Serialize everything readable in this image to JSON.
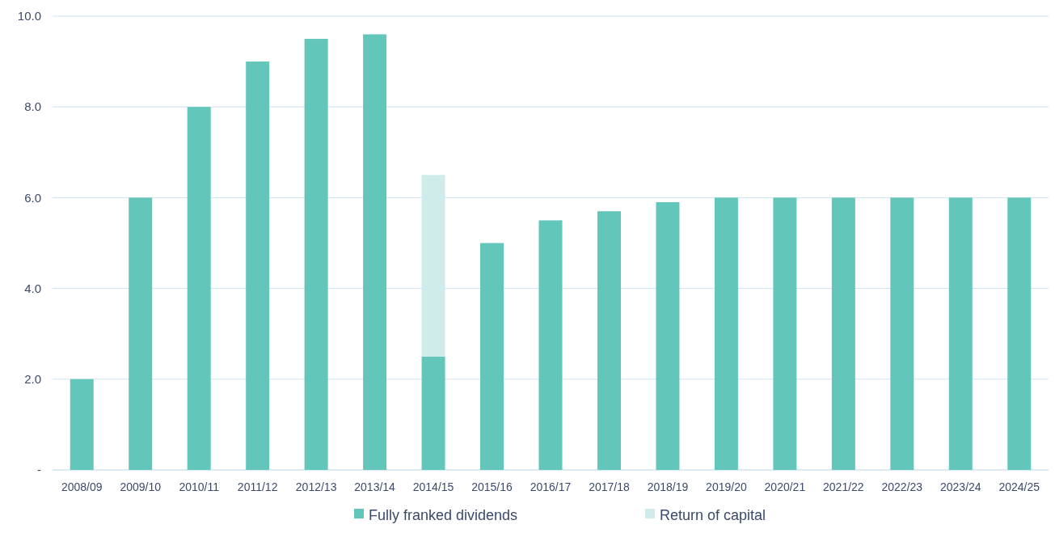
{
  "chart_data": {
    "type": "bar",
    "stacked": true,
    "categories": [
      "2008/09",
      "2009/10",
      "2010/11",
      "2011/12",
      "2012/13",
      "2013/14",
      "2014/15",
      "2015/16",
      "2016/17",
      "2017/18",
      "2018/19",
      "2019/20",
      "2020/21",
      "2021/22",
      "2022/23",
      "2023/24",
      "2024/25"
    ],
    "series": [
      {
        "name": "Fully franked dividends",
        "color": "#62c6bb",
        "values": [
          2,
          6,
          8,
          9,
          9.5,
          9.6,
          2.5,
          5,
          5.5,
          5.7,
          5.9,
          6,
          6,
          6,
          6,
          6,
          6
        ]
      },
      {
        "name": "Return of capital",
        "color": "#d0ecea",
        "values": [
          null,
          null,
          null,
          null,
          null,
          null,
          4.0,
          null,
          null,
          null,
          null,
          null,
          null,
          null,
          null,
          null,
          null
        ]
      }
    ],
    "ylim": [
      0,
      10
    ],
    "yticks": [
      {
        "value": 0,
        "label": "-"
      },
      {
        "value": 2,
        "label": "2.0"
      },
      {
        "value": 4,
        "label": "4.0"
      },
      {
        "value": 6,
        "label": "6.0"
      },
      {
        "value": 8,
        "label": "8.0"
      },
      {
        "value": 10,
        "label": "10.0"
      }
    ],
    "grid": "y",
    "legend": "bottom"
  }
}
